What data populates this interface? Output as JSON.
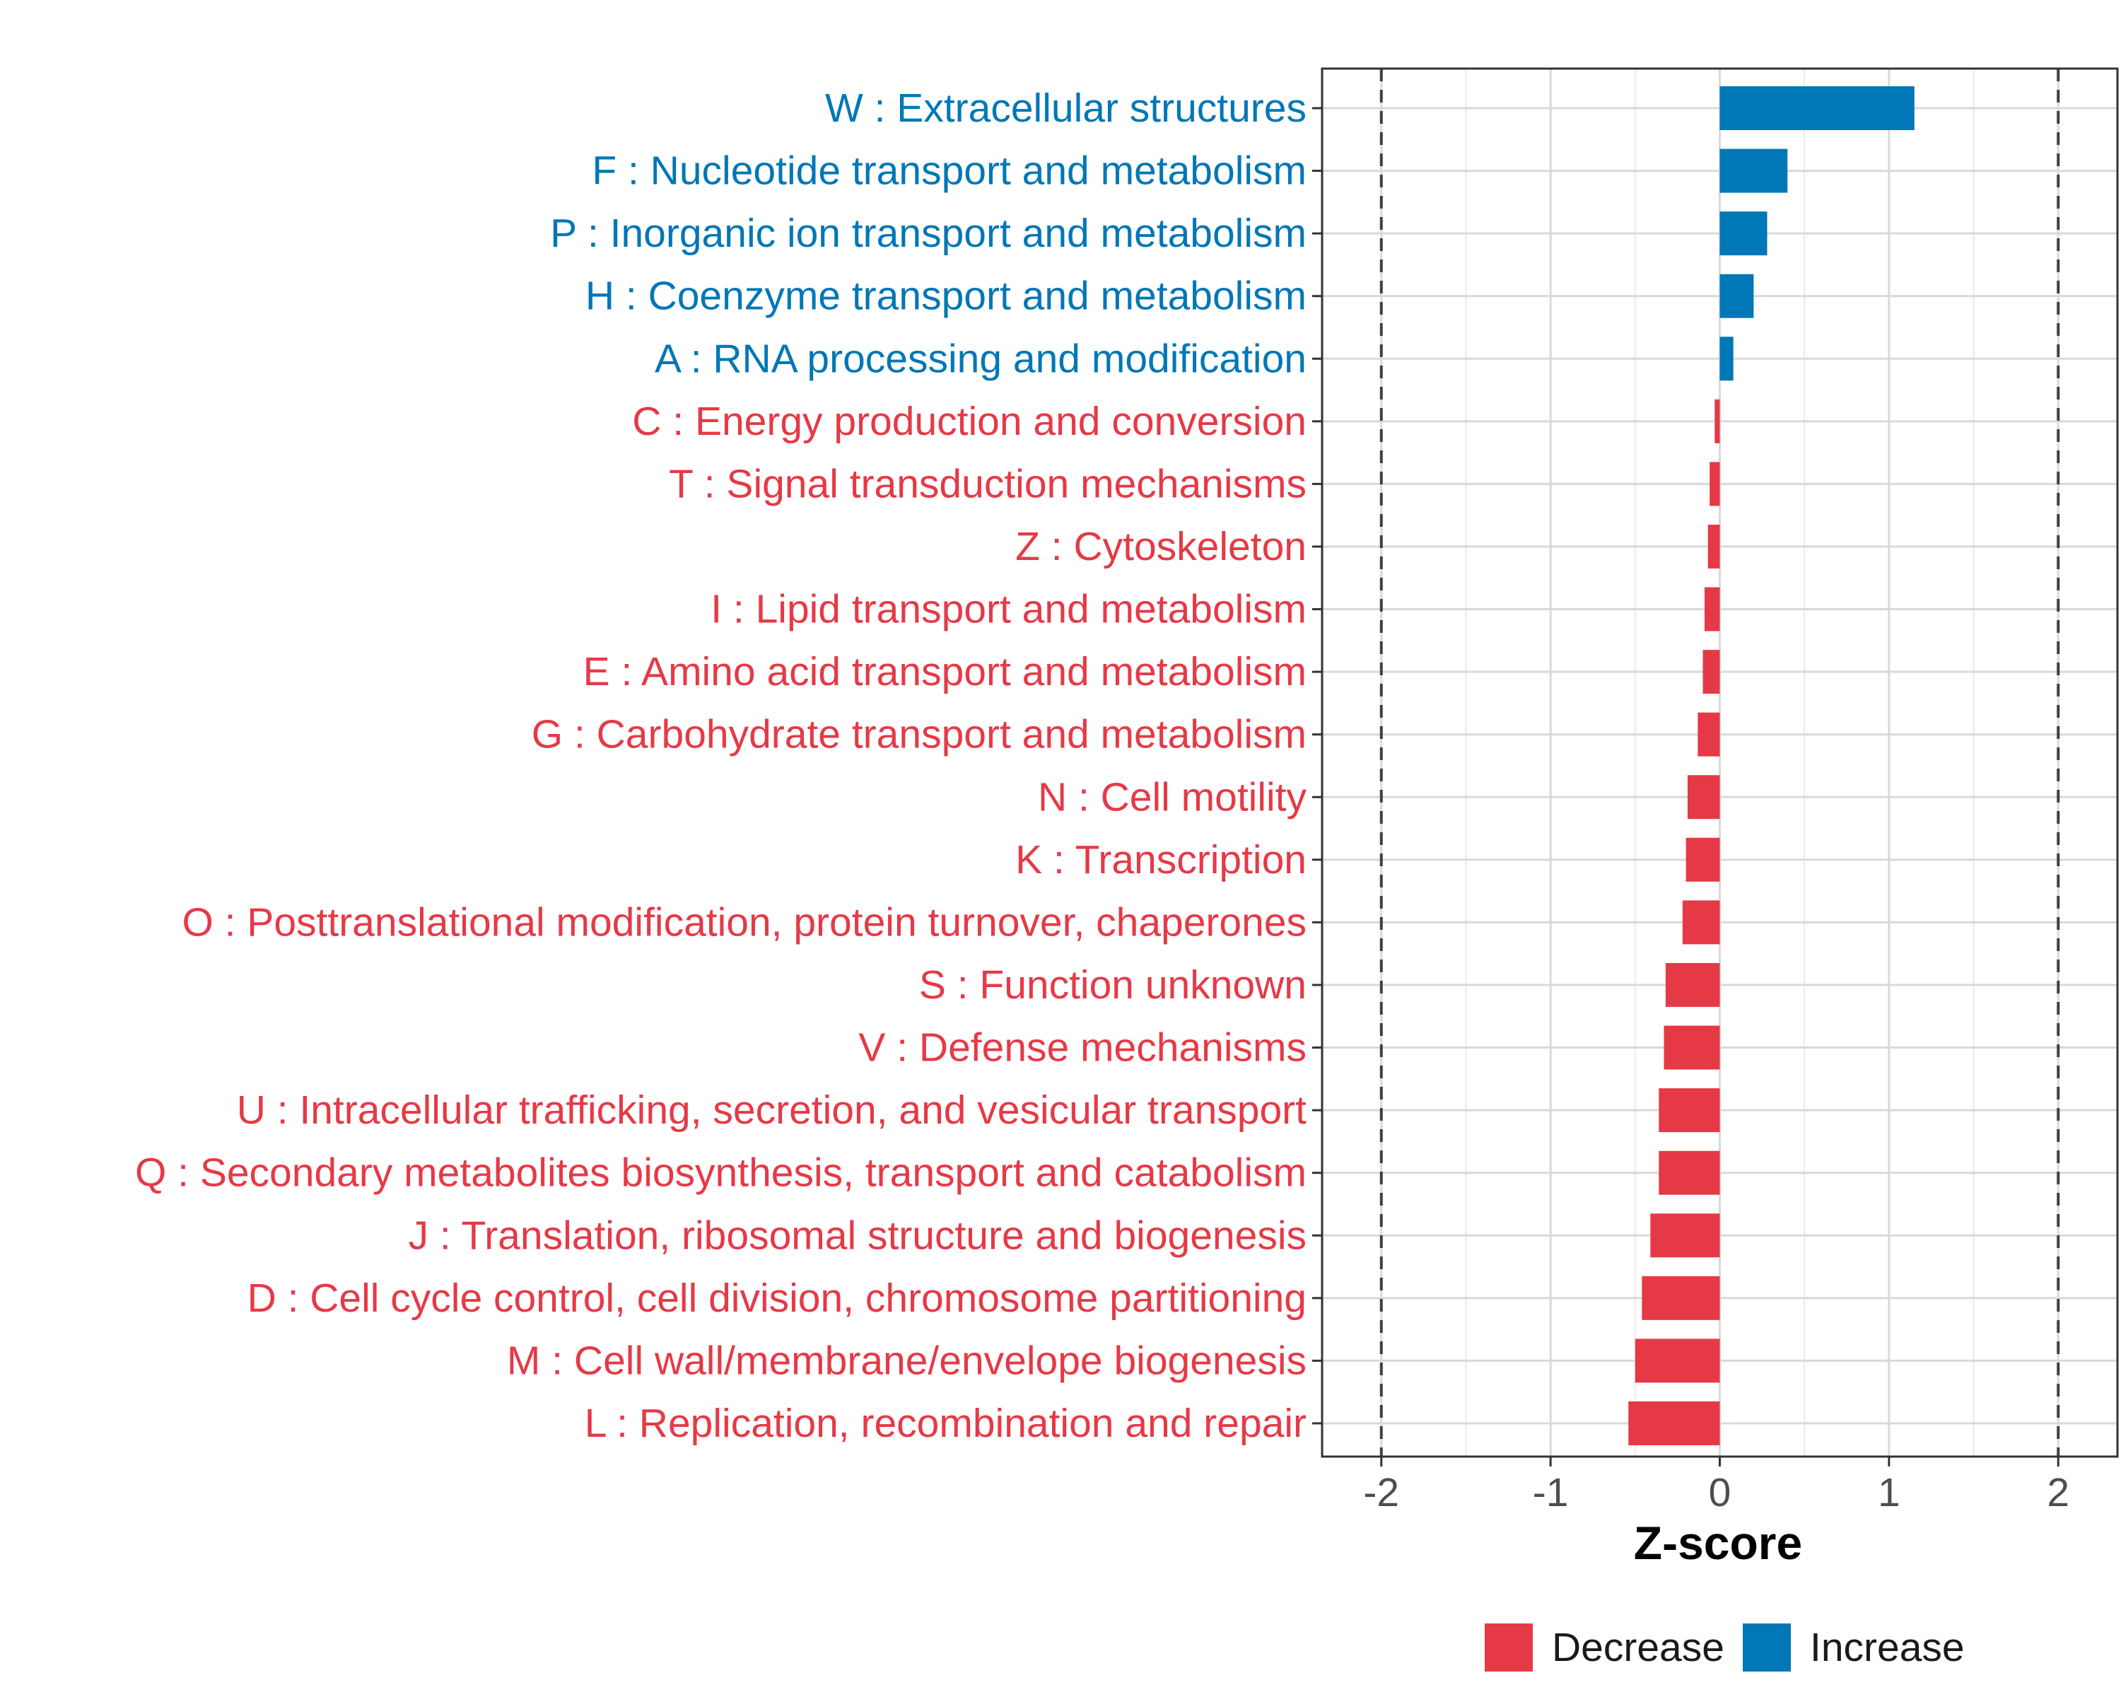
{
  "chart_data": {
    "type": "bar",
    "orientation": "horizontal",
    "title": "",
    "xlabel": "Z-score",
    "ylabel": "",
    "xlim": [
      -2.35,
      2.35
    ],
    "xticks": [
      -2,
      -1,
      0,
      1,
      2
    ],
    "xtick_labels": [
      "-2",
      "-1",
      "0",
      "1",
      "2"
    ],
    "reference_lines": [
      -2,
      2
    ],
    "grid": true,
    "legend_position": "bottom",
    "legend": [
      {
        "name": "Decrease",
        "color": "#E63946"
      },
      {
        "name": "Increase",
        "color": "#0077B6"
      }
    ],
    "categories": [
      "W : Extracellular structures",
      "F : Nucleotide transport and metabolism",
      "P : Inorganic ion transport and metabolism",
      "H : Coenzyme transport and metabolism",
      "A : RNA processing and modification",
      "C : Energy production and conversion",
      "T : Signal transduction mechanisms",
      "Z : Cytoskeleton",
      "I : Lipid transport and metabolism",
      "E : Amino acid transport and metabolism",
      "G : Carbohydrate transport and metabolism",
      "N : Cell motility",
      "K : Transcription",
      "O : Posttranslational modification, protein turnover, chaperones",
      "S : Function unknown",
      "V : Defense mechanisms",
      "U : Intracellular trafficking, secretion, and vesicular transport",
      "Q : Secondary metabolites biosynthesis, transport and catabolism",
      "J : Translation, ribosomal structure and biogenesis",
      "D : Cell cycle control, cell division, chromosome partitioning",
      "M : Cell wall/membrane/envelope biogenesis",
      "L : Replication, recombination and repair"
    ],
    "values": [
      1.15,
      0.4,
      0.28,
      0.2,
      0.08,
      -0.03,
      -0.06,
      -0.07,
      -0.09,
      -0.1,
      -0.13,
      -0.19,
      -0.2,
      -0.22,
      -0.32,
      -0.33,
      -0.36,
      -0.36,
      -0.41,
      -0.46,
      -0.5,
      -0.54
    ],
    "direction": [
      "Increase",
      "Increase",
      "Increase",
      "Increase",
      "Increase",
      "Decrease",
      "Decrease",
      "Decrease",
      "Decrease",
      "Decrease",
      "Decrease",
      "Decrease",
      "Decrease",
      "Decrease",
      "Decrease",
      "Decrease",
      "Decrease",
      "Decrease",
      "Decrease",
      "Decrease",
      "Decrease",
      "Decrease"
    ]
  }
}
